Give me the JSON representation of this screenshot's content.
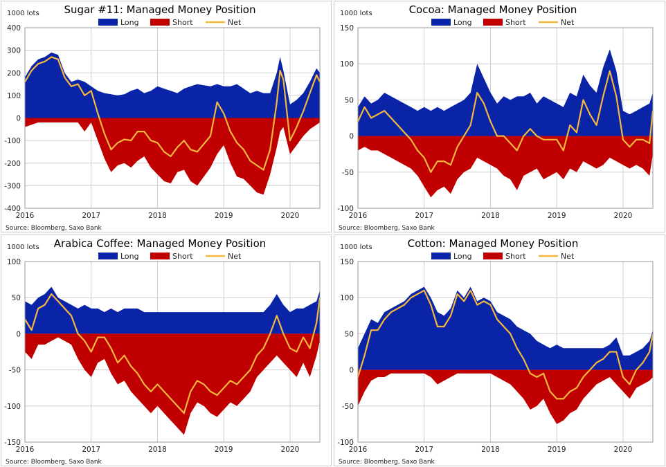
{
  "legend_labels": {
    "long": "Long",
    "short": "Short",
    "net": "Net"
  },
  "colors": {
    "long": "#0a24a8",
    "short": "#c00000",
    "net": "#f5b83d",
    "grid": "#d0d0d0"
  },
  "chart_data": [
    {
      "type": "area",
      "title": "Sugar #11: Managed Money Position",
      "unit_label": "1000 lots",
      "source": "Source: Bloomberg, Saxo Bank",
      "ylim": [
        -400,
        400
      ],
      "yticks": [
        400,
        300,
        200,
        100,
        0,
        -100,
        -200,
        -300,
        -400
      ],
      "xlim": [
        2016.0,
        2020.45
      ],
      "xticks": [
        2016,
        2017,
        2018,
        2019,
        2020
      ],
      "xtick_labels": [
        "2016",
        "2017",
        "2018",
        "2019",
        "2020"
      ],
      "grid": true,
      "legend": "top",
      "x": [
        2016.0,
        2016.1,
        2016.2,
        2016.3,
        2016.4,
        2016.5,
        2016.6,
        2016.7,
        2016.8,
        2016.9,
        2017.0,
        2017.1,
        2017.2,
        2017.3,
        2017.4,
        2017.5,
        2017.6,
        2017.7,
        2017.8,
        2017.9,
        2018.0,
        2018.1,
        2018.2,
        2018.3,
        2018.4,
        2018.5,
        2018.6,
        2018.7,
        2018.8,
        2018.9,
        2019.0,
        2019.1,
        2019.2,
        2019.3,
        2019.4,
        2019.5,
        2019.6,
        2019.7,
        2019.8,
        2019.85,
        2019.9,
        2020.0,
        2020.1,
        2020.2,
        2020.3,
        2020.4,
        2020.45
      ],
      "series": [
        {
          "name": "Long",
          "values": [
            180,
            230,
            260,
            270,
            290,
            280,
            200,
            160,
            170,
            160,
            140,
            120,
            110,
            105,
            100,
            105,
            120,
            130,
            110,
            120,
            140,
            130,
            120,
            110,
            130,
            140,
            150,
            145,
            140,
            150,
            140,
            140,
            150,
            130,
            110,
            120,
            110,
            110,
            200,
            270,
            210,
            60,
            80,
            110,
            160,
            220,
            200
          ]
        },
        {
          "name": "Short",
          "values": [
            -40,
            -30,
            -20,
            -20,
            -20,
            -20,
            -20,
            -20,
            -20,
            -60,
            -20,
            -100,
            -180,
            -240,
            -210,
            -200,
            -220,
            -190,
            -170,
            -220,
            -250,
            -280,
            -290,
            -240,
            -230,
            -280,
            -300,
            -260,
            -220,
            -160,
            -120,
            -200,
            -260,
            -270,
            -300,
            -330,
            -340,
            -250,
            -130,
            -60,
            -40,
            -160,
            -120,
            -80,
            -50,
            -30,
            -20
          ]
        },
        {
          "name": "Net",
          "values": [
            160,
            210,
            240,
            250,
            270,
            260,
            180,
            140,
            150,
            100,
            120,
            20,
            -70,
            -140,
            -110,
            -95,
            -100,
            -60,
            -60,
            -100,
            -110,
            -150,
            -170,
            -130,
            -100,
            -140,
            -150,
            -115,
            -80,
            70,
            20,
            -60,
            -110,
            -140,
            -190,
            -210,
            -230,
            -140,
            70,
            210,
            170,
            -100,
            -40,
            30,
            110,
            190,
            160
          ]
        }
      ]
    },
    {
      "type": "area",
      "title": "Cocoa: Managed Money Position",
      "unit_label": "1000 lots",
      "source": "Source: Bloomberg, Saxo Bank",
      "ylim": [
        -100,
        150
      ],
      "yticks": [
        150,
        100,
        50,
        0,
        -50,
        -100
      ],
      "xlim": [
        2016.0,
        2020.45
      ],
      "xticks": [
        2016,
        2017,
        2018,
        2019,
        2020
      ],
      "xtick_labels": [
        "2016",
        "2017",
        "2018",
        "2019",
        "2020"
      ],
      "grid": true,
      "legend": "top",
      "x": [
        2016.0,
        2016.1,
        2016.2,
        2016.3,
        2016.4,
        2016.5,
        2016.6,
        2016.7,
        2016.8,
        2016.9,
        2017.0,
        2017.1,
        2017.2,
        2017.3,
        2017.4,
        2017.5,
        2017.6,
        2017.7,
        2017.8,
        2017.9,
        2018.0,
        2018.1,
        2018.2,
        2018.3,
        2018.4,
        2018.5,
        2018.6,
        2018.7,
        2018.8,
        2018.9,
        2019.0,
        2019.1,
        2019.2,
        2019.3,
        2019.4,
        2019.5,
        2019.6,
        2019.7,
        2019.8,
        2019.9,
        2020.0,
        2020.1,
        2020.2,
        2020.3,
        2020.4,
        2020.45
      ],
      "series": [
        {
          "name": "Long",
          "values": [
            40,
            55,
            45,
            50,
            60,
            55,
            50,
            45,
            40,
            35,
            40,
            35,
            40,
            35,
            40,
            45,
            50,
            60,
            100,
            80,
            60,
            45,
            55,
            50,
            55,
            55,
            60,
            45,
            55,
            50,
            45,
            40,
            60,
            55,
            85,
            70,
            60,
            95,
            120,
            90,
            35,
            30,
            35,
            40,
            45,
            60
          ]
        },
        {
          "name": "Short",
          "values": [
            -20,
            -15,
            -20,
            -20,
            -25,
            -30,
            -35,
            -40,
            -45,
            -55,
            -70,
            -85,
            -75,
            -70,
            -80,
            -60,
            -50,
            -45,
            -30,
            -35,
            -40,
            -45,
            -55,
            -60,
            -75,
            -55,
            -50,
            -45,
            -60,
            -55,
            -50,
            -60,
            -45,
            -50,
            -35,
            -40,
            -45,
            -40,
            -30,
            -35,
            -40,
            -45,
            -40,
            -45,
            -55,
            -25
          ]
        },
        {
          "name": "Net",
          "values": [
            20,
            40,
            25,
            30,
            35,
            25,
            15,
            5,
            -5,
            -20,
            -30,
            -50,
            -35,
            -35,
            -40,
            -15,
            0,
            15,
            60,
            45,
            20,
            0,
            0,
            -10,
            -20,
            0,
            10,
            0,
            -5,
            -5,
            -5,
            -20,
            15,
            5,
            50,
            30,
            15,
            55,
            90,
            55,
            -5,
            -15,
            -5,
            -5,
            -10,
            35
          ]
        }
      ]
    },
    {
      "type": "area",
      "title": "Arabica Coffee: Managed Money Position",
      "unit_label": "1000 lots",
      "source": "Source: Bloomberg, Saxo Bank",
      "ylim": [
        -150,
        100
      ],
      "yticks": [
        100,
        50,
        0,
        -50,
        -100,
        -150
      ],
      "xlim": [
        2016.0,
        2020.45
      ],
      "xticks": [
        2016,
        2017,
        2018,
        2019,
        2020
      ],
      "xtick_labels": [
        "2016",
        "2017",
        "2018",
        "2019",
        "2020"
      ],
      "grid": true,
      "legend": "top",
      "x": [
        2016.0,
        2016.1,
        2016.2,
        2016.3,
        2016.4,
        2016.5,
        2016.6,
        2016.7,
        2016.8,
        2016.9,
        2017.0,
        2017.1,
        2017.2,
        2017.3,
        2017.4,
        2017.5,
        2017.6,
        2017.7,
        2017.8,
        2017.9,
        2018.0,
        2018.1,
        2018.2,
        2018.3,
        2018.4,
        2018.5,
        2018.6,
        2018.7,
        2018.8,
        2018.9,
        2019.0,
        2019.1,
        2019.2,
        2019.3,
        2019.4,
        2019.5,
        2019.6,
        2019.7,
        2019.8,
        2019.9,
        2020.0,
        2020.1,
        2020.2,
        2020.3,
        2020.4,
        2020.45
      ],
      "series": [
        {
          "name": "Long",
          "values": [
            45,
            40,
            50,
            55,
            65,
            50,
            45,
            40,
            35,
            40,
            35,
            35,
            30,
            35,
            30,
            35,
            35,
            35,
            30,
            30,
            30,
            30,
            30,
            30,
            30,
            30,
            30,
            30,
            30,
            30,
            30,
            30,
            30,
            30,
            30,
            30,
            30,
            40,
            55,
            40,
            30,
            35,
            35,
            40,
            45,
            60
          ]
        },
        {
          "name": "Short",
          "values": [
            -25,
            -35,
            -15,
            -15,
            -10,
            -5,
            -10,
            -15,
            -35,
            -50,
            -60,
            -40,
            -35,
            -55,
            -70,
            -65,
            -80,
            -90,
            -100,
            -110,
            -100,
            -110,
            -120,
            -130,
            -140,
            -110,
            -95,
            -100,
            -110,
            -115,
            -105,
            -95,
            -100,
            -90,
            -80,
            -60,
            -50,
            -40,
            -30,
            -40,
            -50,
            -60,
            -40,
            -60,
            -30,
            -10
          ]
        },
        {
          "name": "Net",
          "values": [
            20,
            5,
            35,
            40,
            55,
            45,
            35,
            25,
            0,
            -10,
            -25,
            -5,
            -5,
            -20,
            -40,
            -30,
            -45,
            -55,
            -70,
            -80,
            -70,
            -80,
            -90,
            -100,
            -110,
            -80,
            -65,
            -70,
            -80,
            -85,
            -75,
            -65,
            -70,
            -60,
            -50,
            -30,
            -20,
            0,
            25,
            0,
            -20,
            -25,
            -5,
            -20,
            15,
            50
          ]
        }
      ]
    },
    {
      "type": "area",
      "title": "Cotton: Managed Money Position",
      "unit_label": "1000 lots",
      "source": "Source: Bloomberg, Saxo Bank",
      "ylim": [
        -100,
        150
      ],
      "yticks": [
        150,
        100,
        50,
        0,
        -50,
        -100
      ],
      "xlim": [
        2016.0,
        2020.45
      ],
      "xticks": [
        2016,
        2017,
        2018,
        2019,
        2020
      ],
      "xtick_labels": [
        "2016",
        "2017",
        "2018",
        "2019",
        "2020"
      ],
      "grid": true,
      "legend": "top",
      "x": [
        2016.0,
        2016.1,
        2016.2,
        2016.3,
        2016.4,
        2016.5,
        2016.6,
        2016.7,
        2016.8,
        2016.9,
        2017.0,
        2017.1,
        2017.2,
        2017.3,
        2017.4,
        2017.5,
        2017.6,
        2017.7,
        2017.8,
        2017.9,
        2018.0,
        2018.1,
        2018.2,
        2018.3,
        2018.4,
        2018.5,
        2018.6,
        2018.7,
        2018.8,
        2018.9,
        2019.0,
        2019.1,
        2019.2,
        2019.3,
        2019.4,
        2019.5,
        2019.6,
        2019.7,
        2019.8,
        2019.9,
        2020.0,
        2020.1,
        2020.2,
        2020.3,
        2020.4,
        2020.45
      ],
      "series": [
        {
          "name": "Long",
          "values": [
            30,
            50,
            70,
            65,
            80,
            85,
            90,
            95,
            105,
            110,
            115,
            100,
            80,
            75,
            85,
            110,
            100,
            115,
            95,
            100,
            95,
            80,
            75,
            70,
            60,
            55,
            50,
            40,
            35,
            30,
            35,
            30,
            30,
            30,
            30,
            30,
            30,
            30,
            35,
            45,
            20,
            20,
            25,
            30,
            40,
            55
          ]
        },
        {
          "name": "Short",
          "values": [
            -50,
            -30,
            -15,
            -10,
            -10,
            -5,
            -5,
            -5,
            -5,
            -5,
            -5,
            -10,
            -20,
            -15,
            -10,
            -5,
            -5,
            -5,
            -5,
            -5,
            -5,
            -10,
            -15,
            -20,
            -30,
            -40,
            -55,
            -50,
            -40,
            -60,
            -75,
            -70,
            -60,
            -55,
            -40,
            -30,
            -20,
            -15,
            -10,
            -20,
            -30,
            -40,
            -25,
            -20,
            -15,
            -10
          ]
        },
        {
          "name": "Net",
          "values": [
            -10,
            20,
            55,
            55,
            70,
            80,
            85,
            90,
            100,
            105,
            110,
            90,
            60,
            60,
            75,
            105,
            95,
            110,
            90,
            95,
            90,
            70,
            60,
            50,
            30,
            15,
            -5,
            -10,
            -5,
            -30,
            -40,
            -40,
            -30,
            -25,
            -10,
            0,
            10,
            15,
            25,
            25,
            -10,
            -20,
            0,
            10,
            25,
            50
          ]
        }
      ]
    }
  ]
}
